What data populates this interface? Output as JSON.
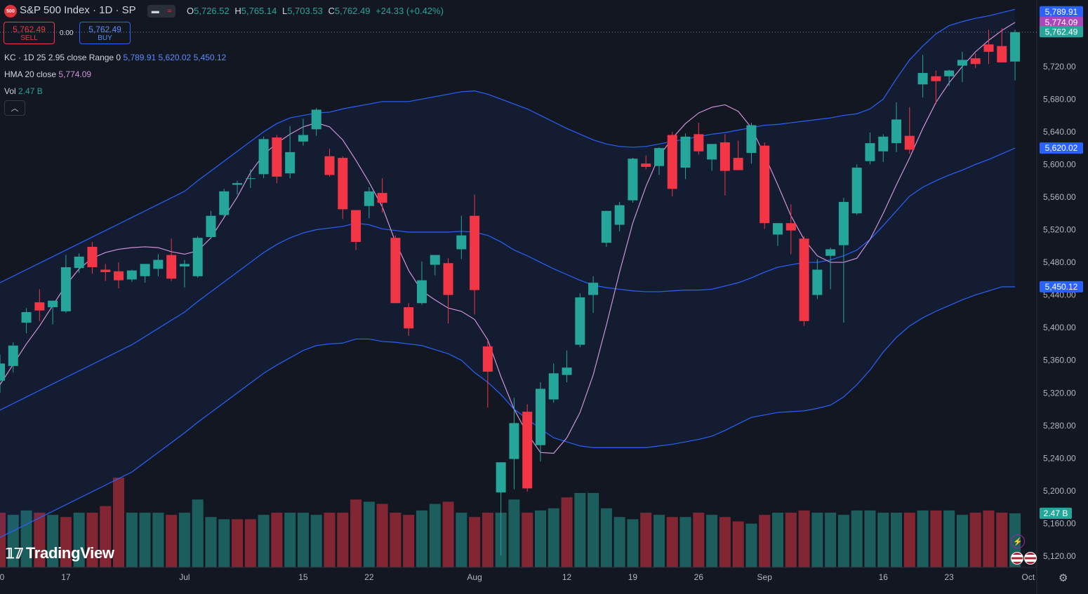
{
  "header": {
    "logo_text": "500",
    "symbol_title": "S&P 500 Index · 1D · SP",
    "toggle_icon": "candle-toggle-icon",
    "ohlc": {
      "o_label": "O",
      "o_value": "5,726.52",
      "h_label": "H",
      "h_value": "5,765.14",
      "l_label": "L",
      "l_value": "5,703.53",
      "c_label": "C",
      "c_value": "5,762.49",
      "change": "+24.33 (+0.42%)"
    }
  },
  "trade": {
    "sell_price": "5,762.49",
    "sell_label": "SELL",
    "spread": "0.00",
    "buy_price": "5,762.49",
    "buy_label": "BUY"
  },
  "indicators": {
    "kc": {
      "label": "KC · 1D 25 2.95 close Range 0",
      "upper": "5,789.91",
      "middle": "5,620.02",
      "lower": "5,450.12"
    },
    "hma": {
      "label": "HMA 20 close",
      "value": "5,774.09"
    },
    "vol": {
      "label": "Vol",
      "value": "2.47 B"
    }
  },
  "price_labels": {
    "kc_upper": "5,789.91",
    "hma": "5,774.09",
    "last": "5,762.49",
    "kc_middle": "5,620.02",
    "kc_lower": "5,450.12",
    "volume": "2.47 B"
  },
  "branding": {
    "logo": "TradingView"
  },
  "colors": {
    "up": "#26a69a",
    "down": "#f23645",
    "kc": "#2962ff",
    "hma": "#ce93d8",
    "background": "#131722"
  },
  "chart_data": {
    "type": "candlestick",
    "title": "S&P 500 Index · 1D · SP",
    "y_ticks": [
      5120,
      5160,
      5200,
      5240,
      5280,
      5320,
      5360,
      5400,
      5440,
      5480,
      5520,
      5560,
      5600,
      5640,
      5680,
      5720
    ],
    "y_tick_labels": [
      "5,120.00",
      "5,160.00",
      "5,200.00",
      "5,240.00",
      "5,280.00",
      "5,320.00",
      "5,360.00",
      "5,400.00",
      "5,440.00",
      "5,480.00",
      "5,520.00",
      "5,560.00",
      "5,600.00",
      "5,640.00",
      "5,680.00",
      "5,720.00"
    ],
    "ylim": [
      5100,
      5800
    ],
    "x_tick_labels": [
      {
        "label": "0",
        "index": 0
      },
      {
        "label": "17",
        "index": 5
      },
      {
        "label": "Jul",
        "index": 14
      },
      {
        "label": "15",
        "index": 23
      },
      {
        "label": "22",
        "index": 28
      },
      {
        "label": "Aug",
        "index": 36
      },
      {
        "label": "12",
        "index": 43
      },
      {
        "label": "19",
        "index": 48
      },
      {
        "label": "26",
        "index": 53
      },
      {
        "label": "Sep",
        "index": 58
      },
      {
        "label": "16",
        "index": 67
      },
      {
        "label": "23",
        "index": 72
      },
      {
        "label": "Oct",
        "index": 78
      }
    ],
    "candles": [
      {
        "o": 5335,
        "h": 5367,
        "l": 5320,
        "c": 5356
      },
      {
        "o": 5353,
        "h": 5382,
        "l": 5345,
        "c": 5378
      },
      {
        "o": 5406,
        "h": 5424,
        "l": 5393,
        "c": 5419
      },
      {
        "o": 5431,
        "h": 5447,
        "l": 5408,
        "c": 5421
      },
      {
        "o": 5425,
        "h": 5433,
        "l": 5404,
        "c": 5433
      },
      {
        "o": 5420,
        "h": 5489,
        "l": 5418,
        "c": 5474
      },
      {
        "o": 5473,
        "h": 5491,
        "l": 5467,
        "c": 5487
      },
      {
        "o": 5499,
        "h": 5505,
        "l": 5466,
        "c": 5474
      },
      {
        "o": 5471,
        "h": 5478,
        "l": 5457,
        "c": 5468
      },
      {
        "o": 5469,
        "h": 5480,
        "l": 5448,
        "c": 5458
      },
      {
        "o": 5459,
        "h": 5471,
        "l": 5456,
        "c": 5470
      },
      {
        "o": 5463,
        "h": 5478,
        "l": 5455,
        "c": 5478
      },
      {
        "o": 5472,
        "h": 5490,
        "l": 5463,
        "c": 5483
      },
      {
        "o": 5489,
        "h": 5509,
        "l": 5457,
        "c": 5460
      },
      {
        "o": 5475,
        "h": 5483,
        "l": 5449,
        "c": 5478
      },
      {
        "o": 5463,
        "h": 5512,
        "l": 5461,
        "c": 5510
      },
      {
        "o": 5511,
        "h": 5543,
        "l": 5509,
        "c": 5537
      },
      {
        "o": 5538,
        "h": 5570,
        "l": 5535,
        "c": 5567
      },
      {
        "o": 5575,
        "h": 5580,
        "l": 5563,
        "c": 5577
      },
      {
        "o": 5583,
        "h": 5594,
        "l": 5571,
        "c": 5583
      },
      {
        "o": 5588,
        "h": 5634,
        "l": 5583,
        "c": 5631
      },
      {
        "o": 5633,
        "h": 5636,
        "l": 5577,
        "c": 5585
      },
      {
        "o": 5589,
        "h": 5647,
        "l": 5583,
        "c": 5615
      },
      {
        "o": 5628,
        "h": 5656,
        "l": 5623,
        "c": 5636
      },
      {
        "o": 5643,
        "h": 5669,
        "l": 5635,
        "c": 5667
      },
      {
        "o": 5610,
        "h": 5619,
        "l": 5585,
        "c": 5587
      },
      {
        "o": 5608,
        "h": 5610,
        "l": 5533,
        "c": 5545
      },
      {
        "o": 5544,
        "h": 5542,
        "l": 5495,
        "c": 5505
      },
      {
        "o": 5549,
        "h": 5572,
        "l": 5534,
        "c": 5567
      },
      {
        "o": 5565,
        "h": 5583,
        "l": 5541,
        "c": 5553
      },
      {
        "o": 5510,
        "h": 5513,
        "l": 5430,
        "c": 5430
      },
      {
        "o": 5425,
        "h": 5430,
        "l": 5390,
        "c": 5399
      },
      {
        "o": 5430,
        "h": 5481,
        "l": 5428,
        "c": 5458
      },
      {
        "o": 5477,
        "h": 5484,
        "l": 5464,
        "c": 5489
      },
      {
        "o": 5479,
        "h": 5485,
        "l": 5405,
        "c": 5440
      },
      {
        "o": 5496,
        "h": 5537,
        "l": 5484,
        "c": 5513
      },
      {
        "o": 5537,
        "h": 5563,
        "l": 5416,
        "c": 5446
      },
      {
        "o": 5377,
        "h": 5384,
        "l": 5302,
        "c": 5346
      },
      {
        "o": 5198,
        "h": 5229,
        "l": 5121,
        "c": 5235
      },
      {
        "o": 5239,
        "h": 5314,
        "l": 5202,
        "c": 5283
      },
      {
        "o": 5297,
        "h": 5306,
        "l": 5199,
        "c": 5203
      },
      {
        "o": 5256,
        "h": 5333,
        "l": 5236,
        "c": 5325
      },
      {
        "o": 5312,
        "h": 5356,
        "l": 5308,
        "c": 5344
      },
      {
        "o": 5342,
        "h": 5372,
        "l": 5333,
        "c": 5351
      },
      {
        "o": 5379,
        "h": 5442,
        "l": 5376,
        "c": 5437
      },
      {
        "o": 5440,
        "h": 5463,
        "l": 5418,
        "c": 5455
      },
      {
        "o": 5504,
        "h": 5543,
        "l": 5499,
        "c": 5543
      },
      {
        "o": 5526,
        "h": 5554,
        "l": 5518,
        "c": 5550
      },
      {
        "o": 5556,
        "h": 5608,
        "l": 5553,
        "c": 5607
      },
      {
        "o": 5601,
        "h": 5611,
        "l": 5594,
        "c": 5597
      },
      {
        "o": 5598,
        "h": 5621,
        "l": 5587,
        "c": 5620
      },
      {
        "o": 5636,
        "h": 5640,
        "l": 5561,
        "c": 5570
      },
      {
        "o": 5596,
        "h": 5638,
        "l": 5582,
        "c": 5634
      },
      {
        "o": 5637,
        "h": 5651,
        "l": 5612,
        "c": 5616
      },
      {
        "o": 5606,
        "h": 5624,
        "l": 5592,
        "c": 5625
      },
      {
        "o": 5627,
        "h": 5637,
        "l": 5562,
        "c": 5592
      },
      {
        "o": 5608,
        "h": 5629,
        "l": 5595,
        "c": 5593
      },
      {
        "o": 5614,
        "h": 5651,
        "l": 5601,
        "c": 5648
      },
      {
        "o": 5623,
        "h": 5627,
        "l": 5521,
        "c": 5528
      },
      {
        "o": 5514,
        "h": 5523,
        "l": 5500,
        "c": 5528
      },
      {
        "o": 5528,
        "h": 5551,
        "l": 5490,
        "c": 5519
      },
      {
        "o": 5509,
        "h": 5512,
        "l": 5402,
        "c": 5408
      },
      {
        "o": 5440,
        "h": 5484,
        "l": 5435,
        "c": 5471
      },
      {
        "o": 5488,
        "h": 5498,
        "l": 5447,
        "c": 5496
      },
      {
        "o": 5501,
        "h": 5559,
        "l": 5406,
        "c": 5554
      },
      {
        "o": 5540,
        "h": 5600,
        "l": 5538,
        "c": 5596
      },
      {
        "o": 5604,
        "h": 5639,
        "l": 5600,
        "c": 5626
      },
      {
        "o": 5616,
        "h": 5637,
        "l": 5603,
        "c": 5634
      },
      {
        "o": 5626,
        "h": 5676,
        "l": 5615,
        "c": 5655
      },
      {
        "o": 5635,
        "h": 5670,
        "l": 5613,
        "c": 5618
      },
      {
        "o": 5698,
        "h": 5734,
        "l": 5682,
        "c": 5712
      },
      {
        "o": 5708,
        "h": 5715,
        "l": 5674,
        "c": 5702
      },
      {
        "o": 5708,
        "h": 5716,
        "l": 5696,
        "c": 5715
      },
      {
        "o": 5721,
        "h": 5738,
        "l": 5701,
        "c": 5728
      },
      {
        "o": 5730,
        "h": 5736,
        "l": 5718,
        "c": 5723
      },
      {
        "o": 5747,
        "h": 5765,
        "l": 5723,
        "c": 5738
      },
      {
        "o": 5745,
        "h": 5767,
        "l": 5726,
        "c": 5725
      },
      {
        "o": 5726,
        "h": 5765,
        "l": 5703,
        "c": 5762
      }
    ],
    "volume_unit": "B",
    "volume_ylim": [
      0,
      5.2
    ],
    "volumes": [
      2.5,
      2.4,
      2.6,
      2.5,
      2.4,
      2.3,
      2.5,
      2.5,
      2.8,
      4.1,
      2.5,
      2.5,
      2.5,
      2.4,
      2.5,
      3.1,
      2.3,
      2.2,
      2.2,
      2.2,
      2.4,
      2.5,
      2.5,
      2.5,
      2.4,
      2.5,
      2.5,
      3.1,
      3.0,
      2.9,
      2.5,
      2.4,
      2.6,
      2.9,
      3.0,
      2.5,
      2.3,
      2.5,
      2.5,
      3.1,
      2.5,
      2.6,
      2.7,
      3.2,
      3.4,
      3.4,
      2.7,
      2.3,
      2.2,
      2.5,
      2.4,
      2.3,
      2.3,
      2.5,
      2.4,
      2.3,
      2.1,
      2.0,
      2.4,
      2.5,
      2.5,
      2.6,
      2.5,
      2.5,
      2.4,
      2.6,
      2.6,
      2.5,
      2.5,
      2.5,
      2.6,
      2.6,
      2.6,
      2.4,
      2.5,
      2.6,
      2.5,
      2.47
    ],
    "volume_up": [
      false,
      true,
      true,
      false,
      true,
      false,
      true,
      false,
      false,
      false,
      true,
      true,
      true,
      false,
      true,
      true,
      true,
      true,
      false,
      false,
      true,
      false,
      true,
      true,
      true,
      false,
      false,
      false,
      true,
      false,
      false,
      false,
      true,
      true,
      false,
      true,
      false,
      false,
      true,
      true,
      false,
      true,
      true,
      false,
      true,
      true,
      true,
      true,
      true,
      false,
      true,
      false,
      true,
      false,
      true,
      false,
      false,
      true,
      false,
      true,
      false,
      false,
      true,
      true,
      true,
      true,
      true,
      true,
      true,
      false,
      true,
      false,
      true,
      true,
      false,
      false,
      false,
      true
    ],
    "kc_upper": [
      5455,
      5463,
      5471,
      5479,
      5487,
      5495,
      5503,
      5511,
      5519,
      5527,
      5535,
      5543,
      5551,
      5559,
      5567,
      5580,
      5592,
      5604,
      5616,
      5628,
      5640,
      5650,
      5657,
      5660,
      5663,
      5664,
      5668,
      5671,
      5674,
      5677,
      5677,
      5677,
      5680,
      5683,
      5686,
      5689,
      5690,
      5686,
      5680,
      5674,
      5668,
      5660,
      5652,
      5644,
      5637,
      5630,
      5625,
      5622,
      5621,
      5622,
      5625,
      5628,
      5631,
      5634,
      5637,
      5639,
      5642,
      5645,
      5648,
      5649,
      5651,
      5653,
      5655,
      5657,
      5660,
      5662,
      5668,
      5680,
      5705,
      5728,
      5745,
      5760,
      5770,
      5775,
      5779,
      5782,
      5786,
      5790
    ],
    "kc_middle": [
      5299,
      5307,
      5315,
      5323,
      5331,
      5339,
      5347,
      5355,
      5363,
      5371,
      5379,
      5389,
      5399,
      5409,
      5419,
      5432,
      5444,
      5456,
      5468,
      5480,
      5492,
      5502,
      5510,
      5516,
      5520,
      5522,
      5524,
      5528,
      5526,
      5521,
      5519,
      5517,
      5517,
      5517,
      5517,
      5518,
      5517,
      5513,
      5505,
      5495,
      5488,
      5480,
      5472,
      5465,
      5458,
      5452,
      5449,
      5447,
      5445,
      5444,
      5444,
      5445,
      5446,
      5446,
      5447,
      5451,
      5455,
      5461,
      5468,
      5474,
      5477,
      5480,
      5480,
      5483,
      5488,
      5495,
      5508,
      5525,
      5543,
      5561,
      5572,
      5580,
      5587,
      5593,
      5600,
      5606,
      5613,
      5620
    ],
    "kc_lower": [
      5143,
      5151,
      5159,
      5167,
      5175,
      5183,
      5191,
      5199,
      5207,
      5215,
      5223,
      5235,
      5247,
      5259,
      5271,
      5284,
      5296,
      5308,
      5320,
      5332,
      5344,
      5354,
      5363,
      5372,
      5378,
      5380,
      5381,
      5386,
      5386,
      5383,
      5382,
      5380,
      5378,
      5373,
      5368,
      5360,
      5345,
      5333,
      5318,
      5300,
      5288,
      5276,
      5265,
      5260,
      5255,
      5253,
      5253,
      5253,
      5253,
      5253,
      5255,
      5257,
      5260,
      5263,
      5267,
      5274,
      5282,
      5290,
      5293,
      5296,
      5297,
      5298,
      5301,
      5305,
      5315,
      5330,
      5348,
      5370,
      5388,
      5402,
      5412,
      5420,
      5427,
      5434,
      5440,
      5445,
      5450,
      5450
    ],
    "hma": [
      5330,
      5355,
      5380,
      5402,
      5427,
      5452,
      5472,
      5485,
      5492,
      5496,
      5498,
      5499,
      5498,
      5493,
      5490,
      5494,
      5510,
      5535,
      5560,
      5590,
      5612,
      5626,
      5637,
      5646,
      5651,
      5646,
      5630,
      5605,
      5578,
      5548,
      5505,
      5470,
      5445,
      5434,
      5424,
      5420,
      5410,
      5385,
      5340,
      5300,
      5270,
      5247,
      5246,
      5265,
      5296,
      5342,
      5403,
      5468,
      5528,
      5573,
      5610,
      5632,
      5650,
      5663,
      5670,
      5673,
      5665,
      5645,
      5611,
      5575,
      5537,
      5508,
      5488,
      5480,
      5480,
      5485,
      5508,
      5540,
      5575,
      5608,
      5644,
      5676,
      5700,
      5720,
      5738,
      5752,
      5764,
      5774
    ]
  }
}
